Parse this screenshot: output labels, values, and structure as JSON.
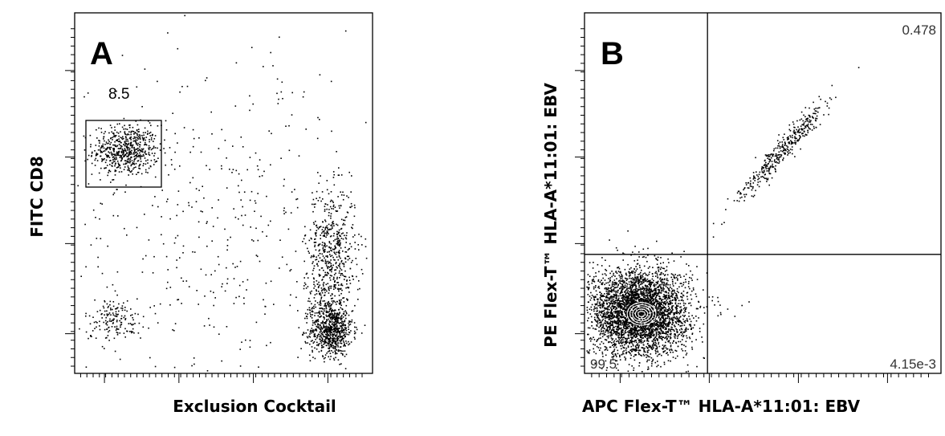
{
  "figure": {
    "panels": [
      {
        "letter": "A",
        "xlabel": "Exclusion Cocktail",
        "ylabel": "FITC CD8",
        "gate_value": "8.5"
      },
      {
        "letter": "B",
        "xlabel": "APC Flex-T™ HLA-A*11:01: EBV",
        "ylabel": "PE Flex-T™ HLA-A*11:01: EBV",
        "quadrants": {
          "upper_right": "0.478",
          "lower_left": "99.5",
          "lower_right": "4.15e-3"
        }
      }
    ]
  },
  "chart_data": [
    {
      "type": "scatter",
      "panel": "A",
      "title": "",
      "xlabel": "Exclusion Cocktail",
      "ylabel": "FITC CD8",
      "x_scale": "log",
      "y_scale": "log",
      "xlim": [
        0,
        1
      ],
      "ylim": [
        0,
        1
      ],
      "gates": [
        {
          "shape": "rectangle",
          "label": "8.5",
          "x": [
            0.04,
            0.33
          ],
          "y": [
            0.51,
            0.7
          ]
        }
      ],
      "populations": [
        {
          "name": "",
          "n": 600,
          "cx": 0.17,
          "cy": 0.62,
          "sx": 0.055,
          "sy": 0.035,
          "ring": false
        },
        {
          "name": "",
          "n": 700,
          "cx": 0.86,
          "cy": 0.12,
          "sx": 0.035,
          "sy": 0.035,
          "ring": false
        },
        {
          "name": "",
          "n": 450,
          "cx": 0.86,
          "cy": 0.36,
          "sx": 0.04,
          "sy": 0.08,
          "ring": false
        },
        {
          "name": "",
          "n": 200,
          "cx": 0.85,
          "cy": 0.22,
          "sx": 0.04,
          "sy": 0.05,
          "ring": false
        },
        {
          "name": "",
          "n": 160,
          "cx": 0.13,
          "cy": 0.15,
          "sx": 0.05,
          "sy": 0.03,
          "ring": false
        },
        {
          "name": "",
          "n": 450,
          "cx": 0.5,
          "cy": 0.4,
          "sx": 0.3,
          "sy": 0.25,
          "ring": false
        }
      ]
    },
    {
      "type": "scatter",
      "panel": "B",
      "title": "",
      "xlabel": "APC Flex-T™ HLA-A*11:01: EBV",
      "ylabel": "PE Flex-T™ HLA-A*11:01: EBV",
      "x_scale": "log",
      "y_scale": "log",
      "xlim": [
        0,
        1
      ],
      "ylim": [
        0,
        1
      ],
      "quadrant_lines": {
        "x": 0.345,
        "y": 0.33
      },
      "quadrant_values": {
        "upper_right": 0.478,
        "lower_left": 99.5,
        "lower_right": 0.00415,
        "upper_left": null
      },
      "populations": [
        {
          "name": "",
          "n": 3800,
          "cx": 0.15,
          "cy": 0.17,
          "sx": 0.07,
          "sy": 0.06,
          "ring": true
        },
        {
          "name": "",
          "n": 400,
          "cx": 0.555,
          "cy": 0.62,
          "sx": 0.04,
          "sy": 0.025,
          "ring": false,
          "diagonal": true
        }
      ],
      "outliers": [
        {
          "x": 0.38,
          "y": 0.17
        },
        {
          "x": 0.4,
          "y": 0.18
        },
        {
          "x": 0.42,
          "y": 0.16
        },
        {
          "x": 0.44,
          "y": 0.19
        },
        {
          "x": 0.36,
          "y": 0.38
        },
        {
          "x": 0.39,
          "y": 0.42
        },
        {
          "x": 0.46,
          "y": 0.2
        }
      ]
    }
  ]
}
